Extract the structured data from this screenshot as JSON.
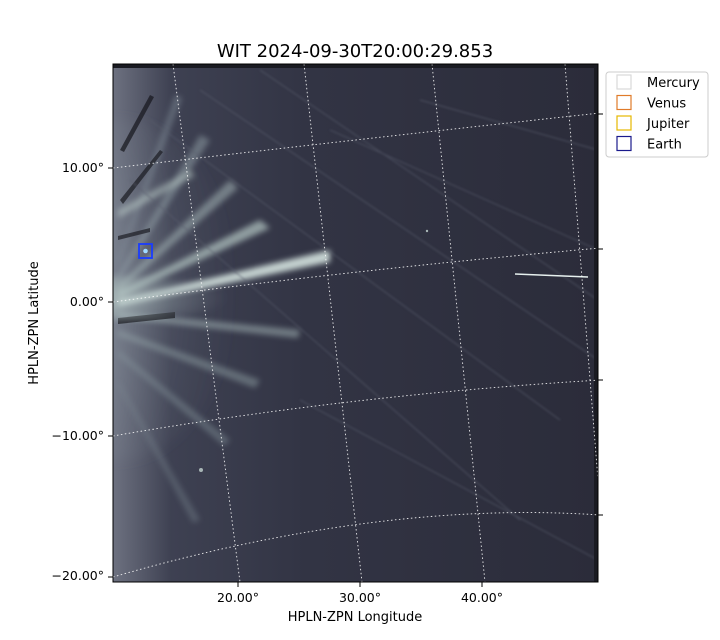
{
  "chart_data": {
    "type": "image",
    "title": "WIT 2024-09-30T20:00:29.853",
    "xlabel": "HPLN-ZPN Longitude",
    "ylabel": "HPLN-ZPN Latitude",
    "x_ticks": [
      {
        "value": 20,
        "label": "20.00°"
      },
      {
        "value": 30,
        "label": "30.00°"
      },
      {
        "value": 40,
        "label": "40.00°"
      }
    ],
    "y_ticks": [
      {
        "value": 10,
        "label": "10.00°"
      },
      {
        "value": 0,
        "label": "0.00°"
      },
      {
        "value": -10,
        "label": "−10.00°"
      },
      {
        "value": -20,
        "label": "−20.00°"
      }
    ],
    "grid": true,
    "grid_style": "dotted-white",
    "colormap": "bone-like (dark slate to pale mint)",
    "legend": {
      "placement": "top-right outside",
      "entries": [
        {
          "name": "Mercury",
          "color": "#d9d9d9"
        },
        {
          "name": "Venus",
          "color": "#e07b2a"
        },
        {
          "name": "Jupiter",
          "color": "#e6b800"
        },
        {
          "name": "Earth",
          "color": "#1a1a8c"
        }
      ]
    },
    "markers": [
      {
        "name": "Earth",
        "lon": 12.4,
        "lat": 3.7,
        "color": "#1a3cff"
      }
    ]
  }
}
